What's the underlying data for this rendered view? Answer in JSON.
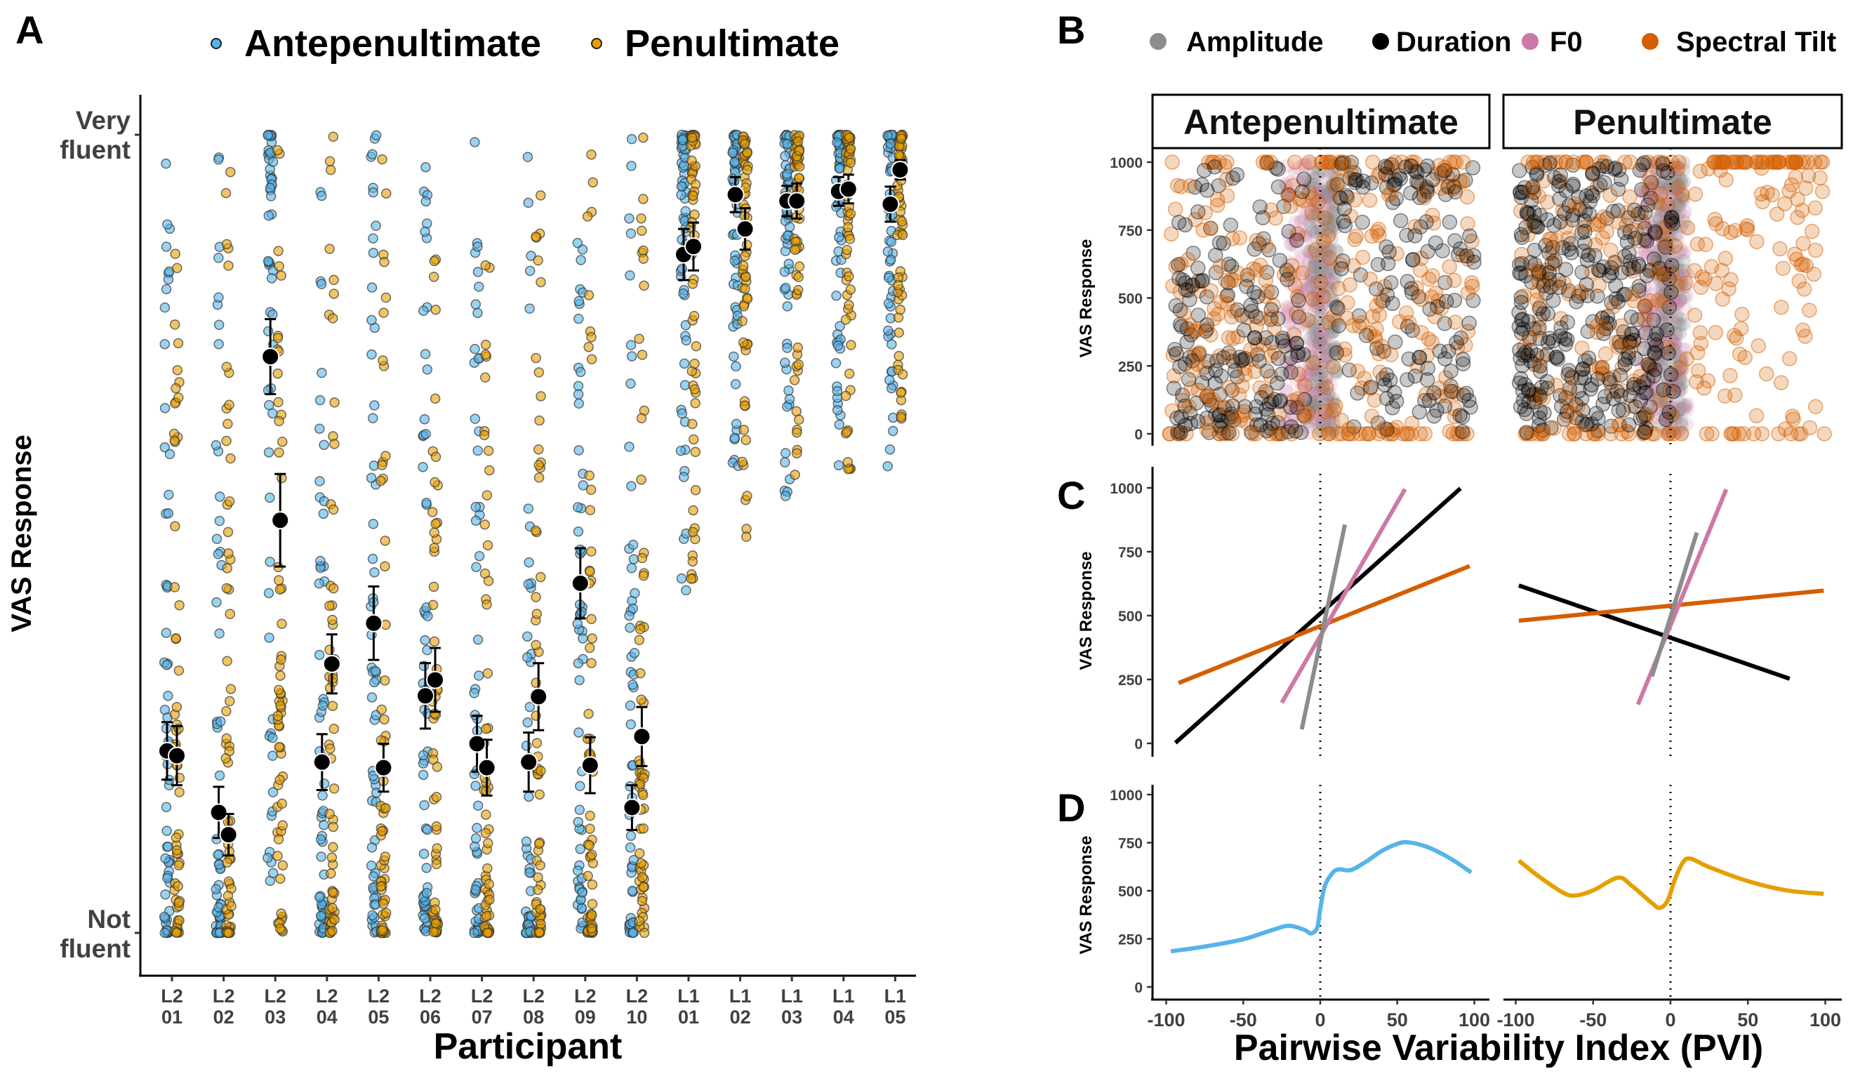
{
  "figure": {
    "panel_labels": [
      "A",
      "B",
      "C",
      "D"
    ]
  },
  "colors": {
    "antepenultimate": "#56B4E9",
    "penultimate": "#E69F00",
    "amplitude": "#8C8C8C",
    "duration": "#000000",
    "f0": "#CC79A7",
    "spectral_tilt": "#D55E00",
    "mean_point": "#000000"
  },
  "chart_data": [
    {
      "id": "A",
      "type": "scatter",
      "title": "",
      "legend": {
        "placement": "top",
        "entries": [
          {
            "label": "Antepenultimate",
            "color_key": "antepenultimate"
          },
          {
            "label": "Penultimate",
            "color_key": "penultimate"
          }
        ]
      },
      "xlabel": "Participant",
      "ylabel": "VAS Response",
      "ylim": [
        0,
        1000
      ],
      "y_ticks": [
        {
          "value": 1000,
          "line1": "Very",
          "line2": "fluent"
        },
        {
          "value": 0,
          "line1": "Not",
          "line2": "fluent"
        }
      ],
      "categories": [
        {
          "line1": "L2",
          "line2": "01"
        },
        {
          "line1": "L2",
          "line2": "02"
        },
        {
          "line1": "L2",
          "line2": "03"
        },
        {
          "line1": "L2",
          "line2": "04"
        },
        {
          "line1": "L2",
          "line2": "05"
        },
        {
          "line1": "L2",
          "line2": "06"
        },
        {
          "line1": "L2",
          "line2": "07"
        },
        {
          "line1": "L2",
          "line2": "08"
        },
        {
          "line1": "L2",
          "line2": "09"
        },
        {
          "line1": "L2",
          "line2": "10"
        },
        {
          "line1": "L1",
          "line2": "01"
        },
        {
          "line1": "L1",
          "line2": "02"
        },
        {
          "line1": "L1",
          "line2": "03"
        },
        {
          "line1": "L1",
          "line2": "04"
        },
        {
          "line1": "L1",
          "line2": "05"
        }
      ],
      "series": [
        {
          "name": "Antepenultimate",
          "color_key": "antepenultimate",
          "means": [
            228,
            151,
            722,
            214,
            388,
            297,
            237,
            214,
            438,
            157,
            850,
            925,
            917,
            929,
            913
          ],
          "error_halfwidth": [
            36,
            32,
            47,
            35,
            46,
            41,
            35,
            37,
            44,
            28,
            32,
            22,
            19,
            18,
            22
          ]
        },
        {
          "name": "Penultimate",
          "color_key": "penultimate",
          "means": [
            222,
            123,
            517,
            337,
            207,
            317,
            207,
            296,
            210,
            246,
            860,
            882,
            917,
            932,
            956
          ],
          "error_halfwidth": [
            37,
            26,
            58,
            37,
            30,
            40,
            35,
            42,
            35,
            37,
            30,
            26,
            22,
            18,
            12
          ]
        }
      ],
      "raw_points_note": "individual responses drawn as jittered semi-transparent dots around each participant column"
    },
    {
      "id": "B",
      "type": "scatter",
      "legend": {
        "placement": "top",
        "entries": [
          {
            "label": "Amplitude",
            "color_key": "amplitude"
          },
          {
            "label": "Duration",
            "color_key": "duration"
          },
          {
            "label": "F0",
            "color_key": "f0"
          },
          {
            "label": "Spectral Tilt",
            "color_key": "spectral_tilt"
          }
        ]
      },
      "facets": [
        "Antepenultimate",
        "Penultimate"
      ],
      "ylabel": "VAS Response",
      "xlim": [
        -100,
        100
      ],
      "ylim": [
        0,
        1000
      ],
      "y_ticks": [
        0,
        250,
        500,
        750,
        1000
      ],
      "vline_x": 0
    },
    {
      "id": "C",
      "type": "line",
      "ylabel": "VAS Response",
      "xlim": [
        -100,
        100
      ],
      "ylim": [
        0,
        1000
      ],
      "y_ticks": [
        0,
        250,
        500,
        750,
        1000
      ],
      "vline_x": 0,
      "facets": [
        {
          "name": "Antepenultimate",
          "lines": [
            {
              "series": "Duration",
              "color_key": "duration",
              "x": [
                -94,
                91
              ],
              "y": [
                2,
                998
              ]
            },
            {
              "series": "Spectral Tilt",
              "color_key": "spectral_tilt",
              "x": [
                -92,
                97
              ],
              "y": [
                236,
                694
              ]
            },
            {
              "series": "F0",
              "color_key": "f0",
              "x": [
                -25,
                55
              ],
              "y": [
                159,
                995
              ]
            },
            {
              "series": "Amplitude",
              "color_key": "amplitude",
              "x": [
                -12,
                16
              ],
              "y": [
                55,
                856
              ]
            }
          ]
        },
        {
          "name": "Penultimate",
          "lines": [
            {
              "series": "Duration",
              "color_key": "duration",
              "x": [
                -98,
                77
              ],
              "y": [
                618,
                253
              ]
            },
            {
              "series": "Spectral Tilt",
              "color_key": "spectral_tilt",
              "x": [
                -98,
                99
              ],
              "y": [
                480,
                598
              ]
            },
            {
              "series": "F0",
              "color_key": "f0",
              "x": [
                -21,
                36
              ],
              "y": [
                152,
                994
              ]
            },
            {
              "series": "Amplitude",
              "color_key": "amplitude",
              "x": [
                -12,
                17
              ],
              "y": [
                262,
                825
              ]
            }
          ]
        }
      ]
    },
    {
      "id": "D",
      "type": "line",
      "xlabel": "Pairwise Variability Index (PVI)",
      "ylabel": "VAS Response",
      "xlim": [
        -100,
        100
      ],
      "ylim": [
        0,
        1000
      ],
      "x_ticks": [
        -100,
        -50,
        0,
        50,
        100
      ],
      "y_ticks": [
        0,
        250,
        500,
        750,
        1000
      ],
      "vline_x": 0,
      "facets": [
        {
          "name": "Antepenultimate",
          "color_key": "antepenultimate",
          "x": [
            -97,
            -75,
            -50,
            -30,
            -20,
            -10,
            -6,
            -2,
            0,
            3,
            8,
            12,
            20,
            30,
            40,
            50,
            57,
            70,
            85,
            98
          ],
          "y": [
            185,
            210,
            248,
            299,
            318,
            296,
            278,
            308,
            405,
            526,
            593,
            611,
            608,
            653,
            707,
            744,
            752,
            726,
            665,
            595
          ]
        },
        {
          "name": "Penultimate",
          "color_key": "penultimate",
          "x": [
            -98,
            -85,
            -70,
            -62,
            -50,
            -34,
            -25,
            -12,
            -7,
            -2,
            3,
            8,
            13,
            25,
            50,
            75,
            99
          ],
          "y": [
            657,
            574,
            493,
            475,
            502,
            568,
            526,
            436,
            411,
            447,
            562,
            647,
            667,
            623,
            550,
            502,
            484
          ]
        }
      ]
    }
  ]
}
